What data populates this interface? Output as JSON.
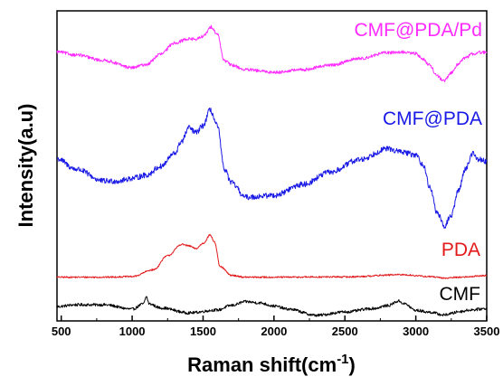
{
  "chart_data": {
    "type": "line",
    "title": "",
    "xlabel": "Raman shift(cm",
    "xlabel_superscript": "-1",
    "xlabel_close": ")",
    "ylabel": "Intensity(a.u)",
    "xlim": [
      470,
      3500
    ],
    "ylim": [
      0,
      100
    ],
    "x_ticks": [
      500,
      1000,
      1500,
      2000,
      2500,
      3000,
      3500
    ],
    "x_tick_labels": [
      "500",
      "1000",
      "1500",
      "2000",
      "2500",
      "3000",
      "3500"
    ],
    "y_ticks_shown": false,
    "grid": false,
    "legend": "labels placed next to each curve",
    "series": [
      {
        "name": "CMF",
        "color": "#000000",
        "x": [
          470,
          600,
          800,
          1000,
          1080,
          1100,
          1120,
          1200,
          1400,
          1600,
          1700,
          1800,
          1900,
          2000,
          2100,
          2300,
          2500,
          2700,
          2800,
          2880,
          2920,
          3000,
          3100,
          3200,
          3250,
          3300,
          3400,
          3500
        ],
        "y": [
          4.6,
          5.2,
          5.2,
          3.8,
          5.5,
          7.8,
          5.5,
          4.2,
          2.6,
          3.5,
          5.0,
          6.2,
          5.8,
          4.8,
          3.8,
          1.8,
          2.9,
          4.0,
          4.9,
          6.4,
          5.5,
          3.4,
          2.8,
          1.9,
          2.4,
          3.0,
          3.6,
          4.0
        ],
        "noise": 0.45
      },
      {
        "name": "PDA",
        "color": "#e31a1c",
        "x": [
          470,
          800,
          1000,
          1150,
          1250,
          1350,
          1400,
          1450,
          1500,
          1550,
          1580,
          1620,
          1700,
          1800,
          2000,
          2500,
          2900,
          3100,
          3200,
          3300,
          3500
        ],
        "y": [
          14.1,
          14.1,
          14.3,
          16.5,
          21.0,
          24.7,
          24.2,
          23.3,
          25.0,
          27.7,
          25.5,
          17.5,
          14.7,
          14.1,
          14.1,
          14.2,
          14.9,
          14.3,
          13.8,
          14.1,
          14.6
        ],
        "noise": 0.25
      },
      {
        "name": "CMF@PDA",
        "color": "#1a1ae6",
        "x": [
          470,
          600,
          800,
          900,
          1000,
          1100,
          1200,
          1300,
          1350,
          1400,
          1450,
          1500,
          1550,
          1600,
          1650,
          1700,
          1800,
          2000,
          2200,
          2400,
          2600,
          2800,
          2900,
          3000,
          3050,
          3100,
          3150,
          3200,
          3250,
          3300,
          3350,
          3400,
          3450,
          3500
        ],
        "y": [
          52.3,
          49.0,
          45.1,
          45.1,
          46.0,
          47.0,
          49.8,
          54.0,
          58.0,
          62.3,
          60.7,
          63.0,
          68.0,
          63.0,
          49.0,
          44.5,
          39.9,
          40.5,
          44.0,
          48.0,
          52.0,
          55.5,
          54.5,
          53.5,
          50.5,
          43.0,
          35.0,
          30.5,
          34.0,
          42.0,
          49.0,
          54.0,
          52.0,
          51.5
        ],
        "noise": 0.9
      },
      {
        "name": "CMF@PDA/Pd",
        "color": "#ff2bff",
        "x": [
          470,
          600,
          800,
          1000,
          1100,
          1200,
          1300,
          1400,
          1450,
          1500,
          1560,
          1600,
          1650,
          1700,
          1800,
          2000,
          2200,
          2400,
          2600,
          2800,
          2900,
          3000,
          3050,
          3100,
          3150,
          3200,
          3250,
          3300,
          3350,
          3400,
          3450,
          3500
        ],
        "y": [
          86.8,
          85.8,
          84.0,
          81.7,
          82.7,
          86.0,
          89.7,
          91.0,
          90.8,
          91.8,
          94.8,
          92.5,
          84.0,
          82.5,
          81.0,
          80.2,
          81.0,
          82.5,
          84.6,
          86.5,
          86.7,
          86.2,
          84.4,
          82.5,
          79.0,
          77.3,
          80.0,
          83.0,
          84.9,
          86.1,
          86.6,
          86.6
        ],
        "noise": 0.5
      }
    ]
  }
}
